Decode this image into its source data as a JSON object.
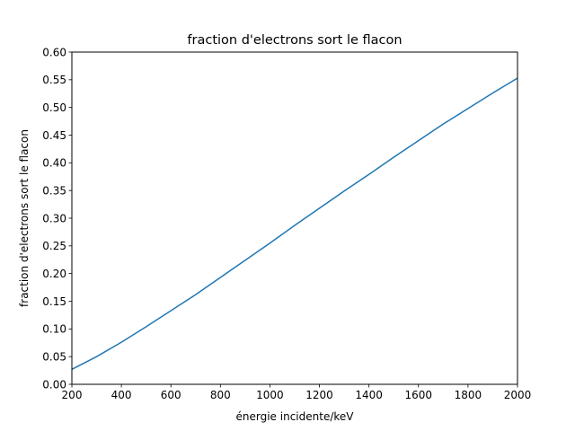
{
  "chart_data": {
    "type": "line",
    "title": "fraction d'electrons sort le flacon",
    "xlabel": "énergie incidente/keV",
    "ylabel": "fraction d'electrons sort le flacon",
    "xlim": [
      200,
      2000
    ],
    "ylim": [
      0,
      0.6
    ],
    "xticks": [
      200,
      400,
      600,
      800,
      1000,
      1200,
      1400,
      1600,
      1800,
      2000
    ],
    "yticks": [
      0.0,
      0.05,
      0.1,
      0.15,
      0.2,
      0.25,
      0.3,
      0.35,
      0.4,
      0.45,
      0.5,
      0.55,
      0.6
    ],
    "grid": false,
    "legend": "none",
    "series": [
      {
        "color": "#1f77b4",
        "x": [
          200,
          300,
          400,
          500,
          600,
          700,
          800,
          900,
          1000,
          1100,
          1200,
          1300,
          1400,
          1500,
          1600,
          1700,
          1800,
          1900,
          2000
        ],
        "y": [
          0.027,
          0.05,
          0.076,
          0.104,
          0.133,
          0.162,
          0.193,
          0.224,
          0.255,
          0.287,
          0.318,
          0.349,
          0.379,
          0.41,
          0.44,
          0.47,
          0.498,
          0.526,
          0.553
        ]
      }
    ]
  }
}
